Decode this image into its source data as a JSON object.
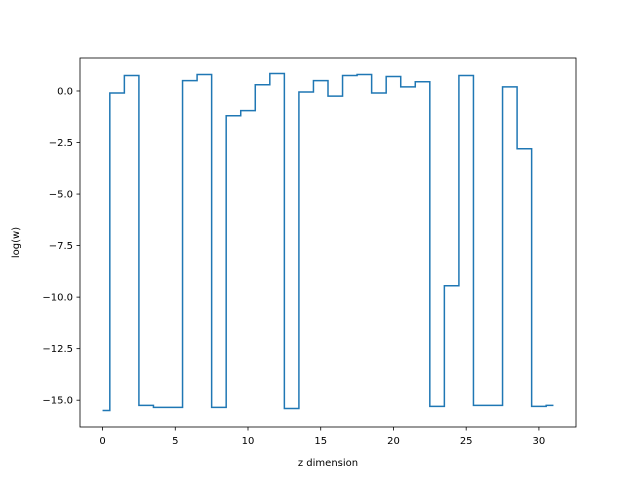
{
  "chart_data": {
    "type": "line",
    "drawstyle": "steps-mid",
    "title": "",
    "xlabel": "z dimension",
    "ylabel": "log(w)",
    "xlim": [
      -1.55,
      32.55
    ],
    "ylim": [
      -16.3,
      1.6
    ],
    "xticks": [
      0,
      5,
      10,
      15,
      20,
      25,
      30
    ],
    "yticks": [
      0.0,
      -2.5,
      -5.0,
      -7.5,
      -10.0,
      -12.5,
      -15.0
    ],
    "xtick_labels": [
      "0",
      "5",
      "10",
      "15",
      "20",
      "25",
      "30"
    ],
    "ytick_labels": [
      "0.0",
      "−2.5",
      "−5.0",
      "−7.5",
      "−10.0",
      "−12.5",
      "−15.0"
    ],
    "grid": false,
    "legend": "none",
    "color": "#1f77b4",
    "series": [
      {
        "x": [
          0,
          1,
          2,
          3,
          4,
          5,
          6,
          7,
          8,
          9,
          10,
          11,
          12,
          13,
          14,
          15,
          16,
          17,
          18,
          19,
          20,
          21,
          22,
          23,
          24,
          25,
          26,
          27,
          28,
          29,
          30,
          31
        ],
        "values": [
          -15.5,
          -0.1,
          0.75,
          -15.25,
          -15.35,
          -15.35,
          0.5,
          0.8,
          -15.35,
          -1.2,
          -0.95,
          0.3,
          0.85,
          -15.4,
          -0.05,
          0.5,
          -0.25,
          0.75,
          0.8,
          -0.1,
          0.7,
          0.2,
          0.45,
          -15.3,
          -9.45,
          0.75,
          -15.25,
          -15.25,
          0.2,
          -2.8,
          -15.3,
          -15.25
        ]
      }
    ]
  }
}
